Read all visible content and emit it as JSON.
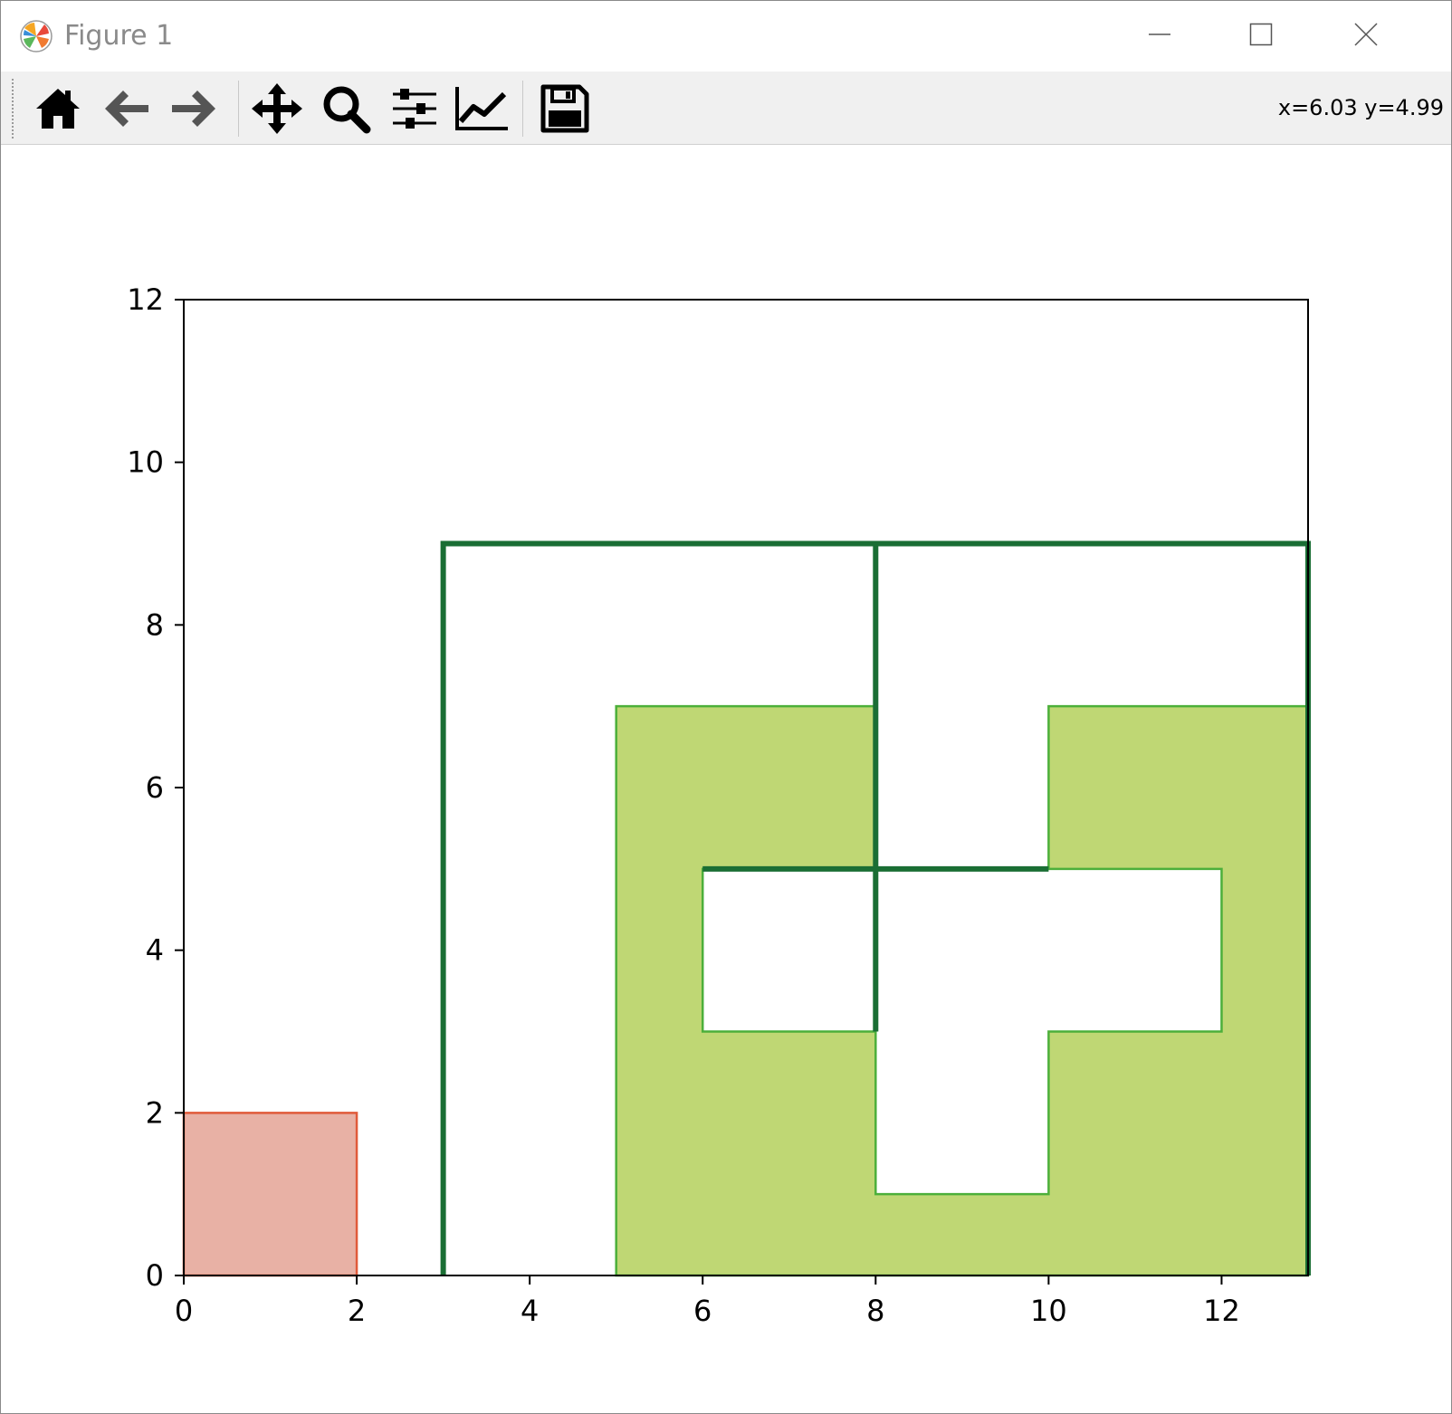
{
  "window": {
    "title": "Figure 1",
    "controls": [
      "minimize",
      "maximize",
      "close"
    ]
  },
  "toolbar": {
    "buttons": [
      {
        "name": "home",
        "icon": "home-icon"
      },
      {
        "name": "back",
        "icon": "arrow-left-icon"
      },
      {
        "name": "forward",
        "icon": "arrow-right-icon"
      },
      {
        "name": "pan",
        "icon": "move-icon"
      },
      {
        "name": "zoom",
        "icon": "magnifier-icon"
      },
      {
        "name": "subplots",
        "icon": "sliders-icon"
      },
      {
        "name": "customize",
        "icon": "line-chart-icon"
      },
      {
        "name": "save",
        "icon": "floppy-icon"
      }
    ],
    "coords": "x=6.03 y=4.99"
  },
  "chart_data": {
    "type": "polygon-plot",
    "xlim": [
      0,
      13
    ],
    "ylim": [
      0,
      12
    ],
    "x_ticks": [
      0,
      2,
      4,
      6,
      8,
      10,
      12
    ],
    "y_ticks": [
      0,
      2,
      4,
      6,
      8,
      10,
      12
    ],
    "grid": false,
    "shapes": [
      {
        "kind": "filled-polygon",
        "fill": "#e8b1a5",
        "stroke": "#e05a3a",
        "points": [
          [
            0,
            0
          ],
          [
            2,
            0
          ],
          [
            2,
            2
          ],
          [
            0,
            2
          ]
        ]
      },
      {
        "kind": "filled-polygon-with-hole",
        "fill": "#bfd774",
        "stroke": "#4caf3a",
        "outer": [
          [
            5,
            0
          ],
          [
            13,
            0
          ],
          [
            13,
            7
          ],
          [
            10,
            7
          ],
          [
            10,
            5
          ],
          [
            8,
            5
          ],
          [
            8,
            7
          ],
          [
            5,
            7
          ]
        ],
        "hole": [
          [
            6,
            3
          ],
          [
            8,
            3
          ],
          [
            8,
            1
          ],
          [
            10,
            1
          ],
          [
            10,
            3
          ],
          [
            12,
            3
          ],
          [
            12,
            5
          ],
          [
            6,
            5
          ]
        ]
      },
      {
        "kind": "polyline",
        "stroke": "#1a6e34",
        "points": [
          [
            3,
            0
          ],
          [
            3,
            9
          ],
          [
            13,
            9
          ],
          [
            13,
            0
          ]
        ]
      },
      {
        "kind": "polyline",
        "stroke": "#1a6e34",
        "points": [
          [
            8,
            9
          ],
          [
            8,
            3
          ]
        ]
      },
      {
        "kind": "polyline",
        "stroke": "#1a6e34",
        "points": [
          [
            6,
            5
          ],
          [
            10,
            5
          ]
        ]
      }
    ]
  }
}
